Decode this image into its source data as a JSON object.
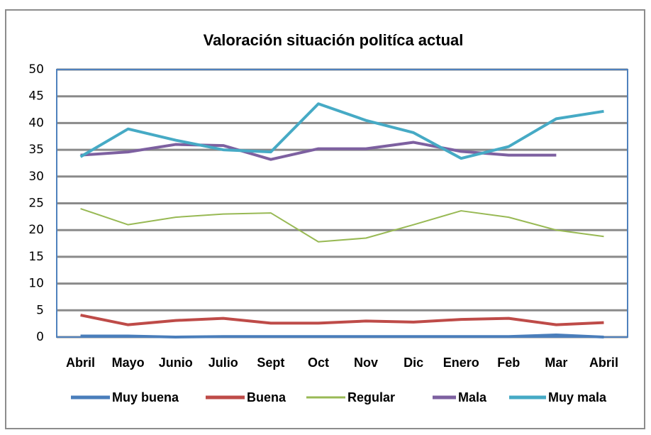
{
  "chart_data": {
    "type": "line",
    "title": "Valoración situación politíca actual",
    "categories": [
      "Abril",
      "Mayo",
      "Junio",
      "Julio",
      "Sept",
      "Oct",
      "Nov",
      "Dic",
      "Enero",
      "Feb",
      "Mar",
      "Abril"
    ],
    "series": [
      {
        "name": "Muy buena",
        "color": "#4a7ebb",
        "values": [
          0.2,
          0.2,
          0.0,
          0.1,
          0.1,
          0.1,
          0.1,
          0.1,
          0.1,
          0.1,
          0.4,
          0.0
        ]
      },
      {
        "name": "Buena",
        "color": "#be4b48",
        "values": [
          4.1,
          2.3,
          3.1,
          3.5,
          2.6,
          2.6,
          3.0,
          2.8,
          3.3,
          3.5,
          2.3,
          2.7
        ]
      },
      {
        "name": "Regular",
        "color": "#98b954",
        "values": [
          24.0,
          21.0,
          22.4,
          23.0,
          23.2,
          17.8,
          18.5,
          21.0,
          23.6,
          22.4,
          20.0,
          18.8
        ]
      },
      {
        "name": "Mala",
        "color": "#7d60a0",
        "values": [
          34.0,
          34.6,
          36.0,
          35.8,
          33.2,
          35.2,
          35.2,
          36.4,
          34.7,
          34.0,
          34.0,
          null
        ]
      },
      {
        "name": "Muy mala",
        "color": "#46aac5",
        "values": [
          33.7,
          38.9,
          36.8,
          35.0,
          34.6,
          43.6,
          40.5,
          38.2,
          33.4,
          35.6,
          40.8,
          42.2
        ]
      }
    ],
    "ylim": [
      0,
      50
    ],
    "yticks": [
      0,
      5,
      10,
      15,
      20,
      25,
      30,
      35,
      40,
      45,
      50
    ],
    "grid": true,
    "legend": "bottom"
  }
}
